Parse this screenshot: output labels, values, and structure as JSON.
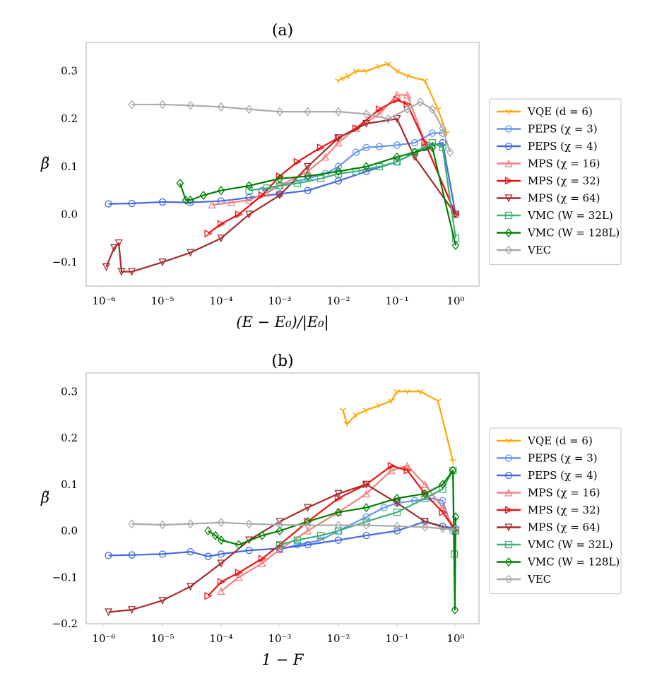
{
  "chart_data": [
    {
      "type": "line",
      "title": "(a)",
      "xlabel": "(E − E₀)/|E₀|",
      "ylabel": "β̃",
      "xscale": "log",
      "xlim": [
        5e-07,
        2.5
      ],
      "ylim": [
        -0.15,
        0.36
      ],
      "x_ticks": [
        "10⁻⁶",
        "10⁻⁵",
        "10⁻⁴",
        "10⁻³",
        "10⁻²",
        "10⁻¹",
        "10⁰"
      ],
      "y_ticks": [
        "−0.1",
        "0.0",
        "0.1",
        "0.2",
        "0.3"
      ],
      "grid": false,
      "legend_position": "outside-right",
      "series": [
        {
          "name": "VQE (d = 6)",
          "color": "#ffa500",
          "marker": "tri",
          "x": [
            0.01,
            0.012,
            0.015,
            0.02,
            0.03,
            0.05,
            0.07,
            0.1,
            0.15,
            0.3,
            0.5,
            0.7
          ],
          "y": [
            0.28,
            0.285,
            0.29,
            0.3,
            0.3,
            0.31,
            0.315,
            0.3,
            0.29,
            0.28,
            0.22,
            0.17
          ]
        },
        {
          "name": "PEPS (χ = 3)",
          "color": "#6495ed",
          "marker": "circle",
          "x": [
            0.0005,
            0.001,
            0.003,
            0.006,
            0.01,
            0.02,
            0.03,
            0.05,
            0.1,
            0.2,
            0.4,
            0.6
          ],
          "y": [
            0.05,
            0.06,
            0.075,
            0.085,
            0.1,
            0.13,
            0.14,
            0.142,
            0.145,
            0.15,
            0.17,
            0.17
          ]
        },
        {
          "name": "PEPS (χ = 4)",
          "color": "#4169e1",
          "marker": "circle",
          "x": [
            1.2e-06,
            3e-06,
            1e-05,
            3e-05,
            0.0001,
            0.0003,
            0.001,
            0.003,
            0.01,
            0.03,
            0.1,
            0.3,
            0.6,
            1.0
          ],
          "y": [
            0.022,
            0.023,
            0.026,
            0.025,
            0.028,
            0.035,
            0.043,
            0.05,
            0.07,
            0.09,
            0.11,
            0.14,
            0.15,
            0.0
          ]
        },
        {
          "name": "MPS (χ = 16)",
          "color": "#f08080",
          "marker": "triangle-up",
          "x": [
            7e-05,
            0.00015,
            0.0003,
            0.0006,
            0.001,
            0.003,
            0.006,
            0.01,
            0.02,
            0.05,
            0.1,
            0.15,
            0.3,
            1.0
          ],
          "y": [
            0.02,
            0.025,
            0.03,
            0.045,
            0.06,
            0.09,
            0.12,
            0.15,
            0.18,
            0.21,
            0.25,
            0.25,
            0.15,
            0.0
          ]
        },
        {
          "name": "MPS (χ = 32)",
          "color": "#ee1111",
          "marker": "triangle-right",
          "x": [
            6e-05,
            0.0001,
            0.0002,
            0.0005,
            0.001,
            0.002,
            0.005,
            0.01,
            0.02,
            0.05,
            0.1,
            0.15,
            0.3,
            1.0
          ],
          "y": [
            -0.04,
            -0.02,
            0.0,
            0.04,
            0.08,
            0.11,
            0.14,
            0.16,
            0.18,
            0.22,
            0.24,
            0.23,
            0.15,
            0.0
          ]
        },
        {
          "name": "MPS (χ = 64)",
          "color": "#a52a2a",
          "marker": "triangle-down",
          "x": [
            1.1e-06,
            1.5e-06,
            1.8e-06,
            2e-06,
            3e-06,
            1e-05,
            3e-05,
            0.0001,
            0.0003,
            0.001,
            0.003,
            0.01,
            0.03,
            0.1,
            0.2,
            1.0
          ],
          "y": [
            -0.11,
            -0.07,
            -0.06,
            -0.12,
            -0.12,
            -0.1,
            -0.08,
            -0.05,
            0.0,
            0.04,
            0.1,
            0.16,
            0.19,
            0.2,
            0.12,
            0.0
          ]
        },
        {
          "name": "VMC (W = 32L)",
          "color": "#3cb371",
          "marker": "square",
          "x": [
            0.0003,
            0.0006,
            0.001,
            0.002,
            0.005,
            0.01,
            0.02,
            0.05,
            0.1,
            0.2,
            0.4,
            0.6,
            1.0
          ],
          "y": [
            0.05,
            0.055,
            0.06,
            0.065,
            0.075,
            0.085,
            0.09,
            0.1,
            0.11,
            0.13,
            0.15,
            0.14,
            -0.05
          ]
        },
        {
          "name": "VMC (W = 128L)",
          "color": "#008000",
          "marker": "diamond",
          "x": [
            2e-05,
            2.5e-05,
            3e-05,
            5e-05,
            0.0001,
            0.0003,
            0.001,
            0.003,
            0.01,
            0.03,
            0.1,
            0.2,
            0.4,
            1.0
          ],
          "y": [
            0.065,
            0.03,
            0.03,
            0.04,
            0.05,
            0.06,
            0.075,
            0.08,
            0.09,
            0.1,
            0.12,
            0.13,
            0.14,
            -0.065
          ]
        },
        {
          "name": "VEC",
          "color": "#aaaaaa",
          "marker": "diamond",
          "x": [
            3e-06,
            1e-05,
            3e-05,
            0.0001,
            0.0003,
            0.001,
            0.003,
            0.01,
            0.03,
            0.07,
            0.15,
            0.25,
            0.4,
            0.6,
            0.8
          ],
          "y": [
            0.23,
            0.23,
            0.228,
            0.225,
            0.22,
            0.215,
            0.215,
            0.215,
            0.21,
            0.2,
            0.22,
            0.235,
            0.22,
            0.18,
            0.13
          ]
        }
      ]
    },
    {
      "type": "line",
      "title": "(b)",
      "xlabel": "1 − F",
      "ylabel": "β̃",
      "xscale": "log",
      "xlim": [
        5e-07,
        2.5
      ],
      "ylim": [
        -0.2,
        0.34
      ],
      "x_ticks": [
        "10⁻⁶",
        "10⁻⁵",
        "10⁻⁴",
        "10⁻³",
        "10⁻²",
        "10⁻¹",
        "10⁰"
      ],
      "y_ticks": [
        "−0.2",
        "−0.1",
        "0.0",
        "0.1",
        "0.2",
        "0.3"
      ],
      "grid": false,
      "legend_position": "outside-right",
      "series": [
        {
          "name": "VQE (d = 6)",
          "color": "#ffa500",
          "marker": "tri",
          "x": [
            0.012,
            0.014,
            0.02,
            0.03,
            0.05,
            0.08,
            0.1,
            0.15,
            0.25,
            0.5,
            0.9
          ],
          "y": [
            0.26,
            0.23,
            0.25,
            0.26,
            0.27,
            0.28,
            0.3,
            0.3,
            0.3,
            0.28,
            0.15
          ]
        },
        {
          "name": "PEPS (χ = 3)",
          "color": "#6495ed",
          "marker": "circle",
          "x": [
            0.001,
            0.002,
            0.005,
            0.01,
            0.03,
            0.06,
            0.1,
            0.2,
            0.4,
            0.6,
            0.9
          ],
          "y": [
            -0.04,
            -0.03,
            -0.02,
            0.0,
            0.03,
            0.05,
            0.06,
            0.065,
            0.07,
            0.065,
            0.0
          ]
        },
        {
          "name": "PEPS (χ = 4)",
          "color": "#4169e1",
          "marker": "circle",
          "x": [
            1.2e-06,
            3e-06,
            1e-05,
            3e-05,
            6e-05,
            0.0001,
            0.0003,
            0.001,
            0.003,
            0.01,
            0.03,
            0.1,
            0.3,
            0.6,
            1.0
          ],
          "y": [
            -0.053,
            -0.052,
            -0.05,
            -0.045,
            -0.055,
            -0.05,
            -0.042,
            -0.038,
            -0.03,
            -0.02,
            -0.01,
            0.0,
            0.02,
            0.01,
            0.005
          ]
        },
        {
          "name": "MPS (χ = 16)",
          "color": "#f08080",
          "marker": "triangle-up",
          "x": [
            0.0001,
            0.0002,
            0.0005,
            0.001,
            0.003,
            0.01,
            0.03,
            0.08,
            0.15,
            0.3,
            0.6,
            1.0
          ],
          "y": [
            -0.13,
            -0.1,
            -0.07,
            -0.04,
            0.0,
            0.04,
            0.08,
            0.13,
            0.14,
            0.1,
            0.05,
            0.0
          ]
        },
        {
          "name": "MPS (χ = 32)",
          "color": "#ee1111",
          "marker": "triangle-right",
          "x": [
            6e-05,
            0.0001,
            0.0002,
            0.0005,
            0.001,
            0.003,
            0.01,
            0.03,
            0.08,
            0.15,
            0.3,
            0.6,
            1.0
          ],
          "y": [
            -0.14,
            -0.11,
            -0.09,
            -0.06,
            -0.03,
            0.02,
            0.07,
            0.1,
            0.14,
            0.13,
            0.08,
            0.04,
            0.0
          ]
        },
        {
          "name": "MPS (χ = 64)",
          "color": "#a52a2a",
          "marker": "triangle-down",
          "x": [
            1.2e-06,
            3e-06,
            1e-05,
            3e-05,
            0.0001,
            0.0003,
            0.001,
            0.003,
            0.01,
            0.03,
            0.1,
            0.3,
            1.0
          ],
          "y": [
            -0.175,
            -0.17,
            -0.15,
            -0.12,
            -0.07,
            -0.02,
            0.02,
            0.05,
            0.08,
            0.1,
            0.06,
            0.02,
            0.0
          ]
        },
        {
          "name": "VMC (W = 32L)",
          "color": "#3cb371",
          "marker": "square",
          "x": [
            0.001,
            0.002,
            0.005,
            0.01,
            0.03,
            0.1,
            0.3,
            0.6,
            0.9,
            0.95,
            1.0
          ],
          "y": [
            -0.03,
            -0.02,
            -0.01,
            0.0,
            0.02,
            0.04,
            0.07,
            0.09,
            0.13,
            -0.05,
            0.0
          ]
        },
        {
          "name": "VMC (W = 128L)",
          "color": "#008000",
          "marker": "diamond",
          "x": [
            6e-05,
            8e-05,
            0.0001,
            0.0002,
            0.0005,
            0.001,
            0.003,
            0.01,
            0.03,
            0.1,
            0.3,
            0.6,
            0.9,
            0.97,
            1.0
          ],
          "y": [
            0.0,
            -0.01,
            -0.02,
            -0.03,
            -0.01,
            0.0,
            0.02,
            0.04,
            0.05,
            0.07,
            0.08,
            0.1,
            0.13,
            -0.17,
            0.03
          ]
        },
        {
          "name": "VEC",
          "color": "#aaaaaa",
          "marker": "diamond",
          "x": [
            3e-06,
            1e-05,
            3e-05,
            0.0001,
            0.0003,
            0.001,
            0.003,
            0.01,
            0.03,
            0.1,
            0.3,
            0.6,
            1.0
          ],
          "y": [
            0.015,
            0.013,
            0.015,
            0.018,
            0.015,
            0.013,
            0.012,
            0.012,
            0.012,
            0.01,
            0.008,
            0.005,
            0.003
          ]
        }
      ]
    }
  ]
}
